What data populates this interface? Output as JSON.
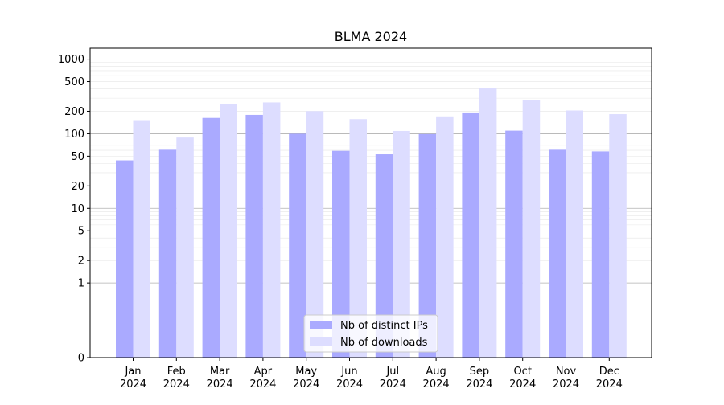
{
  "chart_data": {
    "type": "bar",
    "title": "BLMA 2024",
    "xlabel": "",
    "ylabel": "",
    "y_scale": "symlog",
    "ylim": [
      0,
      1400
    ],
    "grid": "horizontal",
    "legend_position": "bottom-center",
    "yticks": [
      0,
      1,
      2,
      5,
      10,
      20,
      50,
      100,
      200,
      500,
      1000
    ],
    "yticks_labels": [
      "0",
      "1",
      "2",
      "5",
      "10",
      "20",
      "50",
      "100",
      "200",
      "500",
      "1000"
    ],
    "categories": [
      "Jan\n2024",
      "Feb\n2024",
      "Mar\n2024",
      "Apr\n2024",
      "May\n2024",
      "Jun\n2024",
      "Jul\n2024",
      "Aug\n2024",
      "Sep\n2024",
      "Oct\n2024",
      "Nov\n2024",
      "Dec\n2024"
    ],
    "series": [
      {
        "name": "Nb of distinct IPs",
        "color": "#aaaaff",
        "values": [
          44,
          61,
          163,
          179,
          100,
          59,
          53,
          99,
          193,
          110,
          61,
          58
        ]
      },
      {
        "name": "Nb of downloads",
        "color": "#ddddff",
        "values": [
          152,
          89,
          253,
          263,
          201,
          157,
          109,
          171,
          410,
          283,
          205,
          183
        ]
      }
    ]
  }
}
